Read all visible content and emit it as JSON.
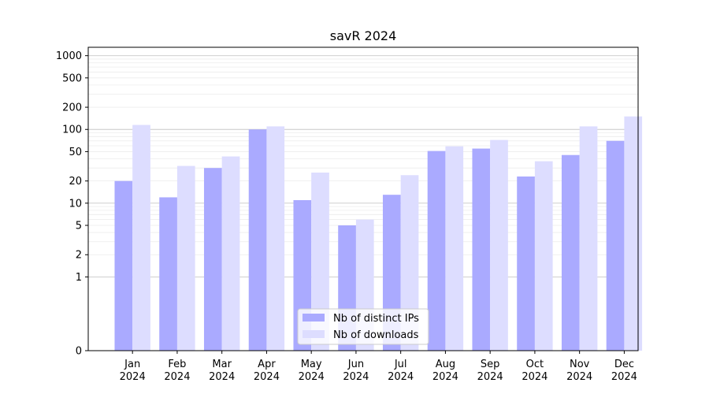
{
  "chart_data": {
    "type": "bar",
    "title": "savR 2024",
    "xlabel": "",
    "ylabel": "",
    "yscale": "symlog",
    "ylim": [
      0,
      1300
    ],
    "yticks": [
      0,
      1,
      2,
      5,
      10,
      20,
      50,
      100,
      200,
      500,
      1000
    ],
    "ytick_labels": [
      "0",
      "1",
      "2",
      "5",
      "10",
      "20",
      "50",
      "100",
      "200",
      "500",
      "1000"
    ],
    "grid": true,
    "legend_position": "lower-center",
    "categories": [
      "Jan\n2024",
      "Feb\n2024",
      "Mar\n2024",
      "Apr\n2024",
      "May\n2024",
      "Jun\n2024",
      "Jul\n2024",
      "Aug\n2024",
      "Sep\n2024",
      "Oct\n2024",
      "Nov\n2024",
      "Dec\n2024"
    ],
    "series": [
      {
        "name": "Nb of distinct IPs",
        "color": "#aaaaff",
        "values": [
          20,
          12,
          30,
          100,
          11,
          5,
          13,
          51,
          55,
          23,
          45,
          70
        ]
      },
      {
        "name": "Nb of downloads",
        "color": "#ddddff",
        "values": [
          115,
          32,
          43,
          110,
          26,
          6,
          24,
          59,
          72,
          37,
          110,
          150
        ]
      }
    ]
  }
}
